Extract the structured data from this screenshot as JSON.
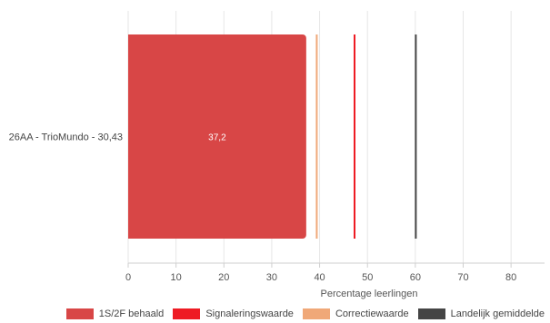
{
  "chart_data": {
    "type": "bar",
    "orientation": "horizontal",
    "categories": [
      "26AA - TrioMundo - 30,43"
    ],
    "series": [
      {
        "name": "1S/2F behaald",
        "values": [
          37.2
        ],
        "color": "#d84646",
        "data_labels": [
          "37,2"
        ]
      }
    ],
    "reference_lines": [
      {
        "name": "Signaleringswaarde",
        "value": 47.3,
        "color": "#ee1b24"
      },
      {
        "name": "Correctiewaarde",
        "value": 39.4,
        "color": "#f0a878"
      },
      {
        "name": "Landelijk gemiddelde",
        "value": 60.1,
        "color": "#454545"
      }
    ],
    "xlabel": "Percentage leerlingen",
    "ylabel": "",
    "xlim": [
      0,
      87
    ],
    "xticks": [
      0,
      10,
      20,
      30,
      40,
      50,
      60,
      70,
      80
    ],
    "tick_labels": [
      "0",
      "10",
      "20",
      "30",
      "40",
      "50",
      "60",
      "70",
      "80"
    ],
    "grid": true,
    "legend_position": "bottom-right",
    "legend": [
      {
        "label": "1S/2F behaald",
        "color": "#d84646"
      },
      {
        "label": "Signaleringswaarde",
        "color": "#ee1b24"
      },
      {
        "label": "Correctiewaarde",
        "color": "#f0a878"
      },
      {
        "label": "Landelijk gemiddelde",
        "color": "#454545"
      }
    ]
  }
}
